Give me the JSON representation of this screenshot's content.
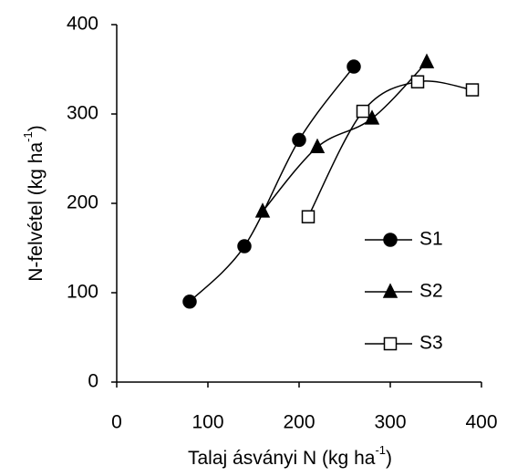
{
  "chart_data": {
    "type": "line",
    "xlabel": {
      "text": "Talaj ásványi N (kg ha",
      "sup": "-1",
      "end": ")"
    },
    "ylabel": {
      "text": "N-felvétel (kg ha",
      "sup": "-1",
      "end": ")"
    },
    "xlim": [
      0,
      400
    ],
    "xticks": [
      0,
      100,
      200,
      300,
      400
    ],
    "ylim": [
      0,
      400
    ],
    "yticks": [
      0,
      100,
      200,
      300,
      400
    ],
    "grid": false,
    "smooth": true,
    "legend": "lower right",
    "series": [
      {
        "name": "S1",
        "color": "#000000",
        "marker": "circle",
        "filled": true,
        "x": [
          80,
          140,
          200,
          260
        ],
        "values": [
          90,
          152,
          271,
          353
        ]
      },
      {
        "name": "S2",
        "color": "#000000",
        "marker": "triangle",
        "filled": true,
        "x": [
          160,
          220,
          280,
          340
        ],
        "values": [
          191,
          263,
          295,
          358
        ]
      },
      {
        "name": "S3",
        "color": "#000000",
        "marker": "square",
        "filled": false,
        "x": [
          210,
          270,
          330,
          390
        ],
        "values": [
          185,
          303,
          336,
          327
        ]
      }
    ]
  }
}
